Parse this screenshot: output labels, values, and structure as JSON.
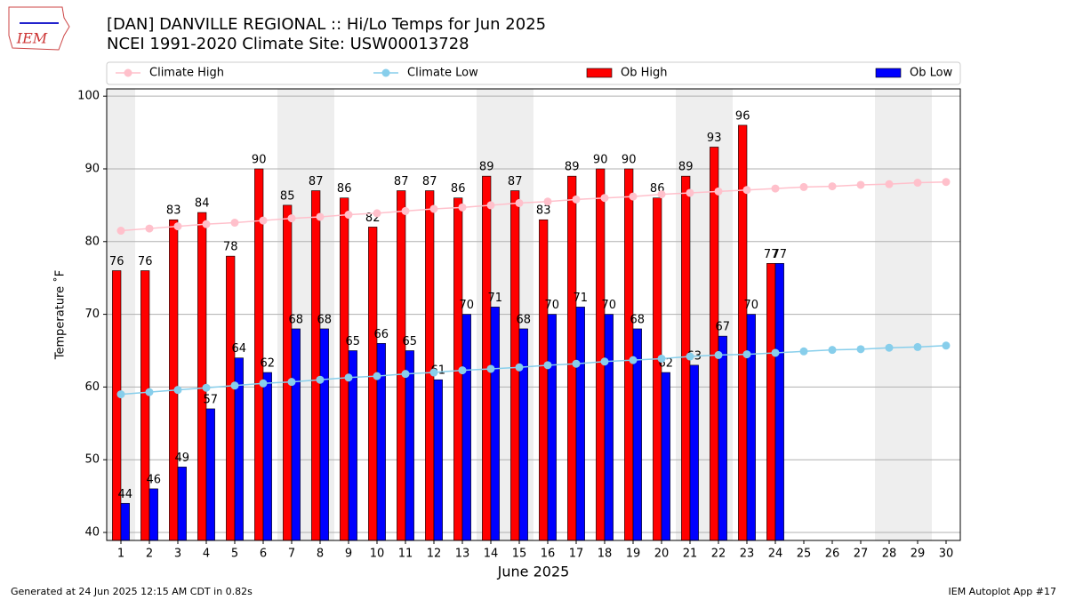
{
  "chart_data": {
    "type": "bar",
    "title": "[DAN] DANVILLE REGIONAL :: Hi/Lo Temps for Jun 2025",
    "subtitle": "NCEI 1991-2020 Climate Site: USW00013728",
    "x_label": "June 2025",
    "y_label": "Temperature ˚F",
    "categories": [
      "1",
      "2",
      "3",
      "4",
      "5",
      "6",
      "7",
      "8",
      "9",
      "10",
      "11",
      "12",
      "13",
      "14",
      "15",
      "16",
      "17",
      "18",
      "19",
      "20",
      "21",
      "22",
      "23",
      "24",
      "25",
      "26",
      "27",
      "28",
      "29",
      "30"
    ],
    "series": [
      {
        "name": "Climate High",
        "type": "line",
        "color": "#ffc0cb",
        "values": [
          81.5,
          81.8,
          82.1,
          82.4,
          82.6,
          82.9,
          83.2,
          83.4,
          83.7,
          83.9,
          84.2,
          84.5,
          84.7,
          85.0,
          85.3,
          85.5,
          85.8,
          86.0,
          86.2,
          86.5,
          86.7,
          86.9,
          87.1,
          87.3,
          87.5,
          87.6,
          87.8,
          87.9,
          88.1,
          88.2
        ]
      },
      {
        "name": "Climate Low",
        "type": "line",
        "color": "#87ceeb",
        "values": [
          59.0,
          59.3,
          59.6,
          59.9,
          60.2,
          60.5,
          60.7,
          61.0,
          61.3,
          61.5,
          61.8,
          62.0,
          62.3,
          62.5,
          62.7,
          63.0,
          63.2,
          63.5,
          63.7,
          63.9,
          64.2,
          64.4,
          64.5,
          64.7,
          64.9,
          65.1,
          65.2,
          65.4,
          65.5,
          65.7
        ]
      },
      {
        "name": "Ob High",
        "type": "bar",
        "color": "#ff0000",
        "values": [
          76,
          76,
          83,
          84,
          78,
          90,
          85,
          87,
          86,
          82,
          87,
          87,
          86,
          89,
          87,
          83,
          89,
          90,
          90,
          86,
          89,
          93,
          96,
          77,
          null,
          null,
          null,
          null,
          null,
          null
        ]
      },
      {
        "name": "Ob Low",
        "type": "bar",
        "color": "#0000ff",
        "values": [
          44,
          46,
          49,
          57,
          64,
          62,
          68,
          68,
          65,
          66,
          65,
          61,
          70,
          71,
          68,
          70,
          71,
          70,
          68,
          62,
          63,
          67,
          70,
          77,
          null,
          null,
          null,
          null,
          null,
          null
        ]
      }
    ],
    "ylim": [
      38.9,
      101
    ],
    "yticks": [
      40,
      50,
      60,
      70,
      80,
      90,
      100
    ],
    "grid": true,
    "legend": "top"
  },
  "logo_text": "IEM",
  "footer_left": "Generated at 24 Jun 2025 12:15 AM CDT in 0.82s",
  "footer_right": "IEM Autoplot App #17"
}
